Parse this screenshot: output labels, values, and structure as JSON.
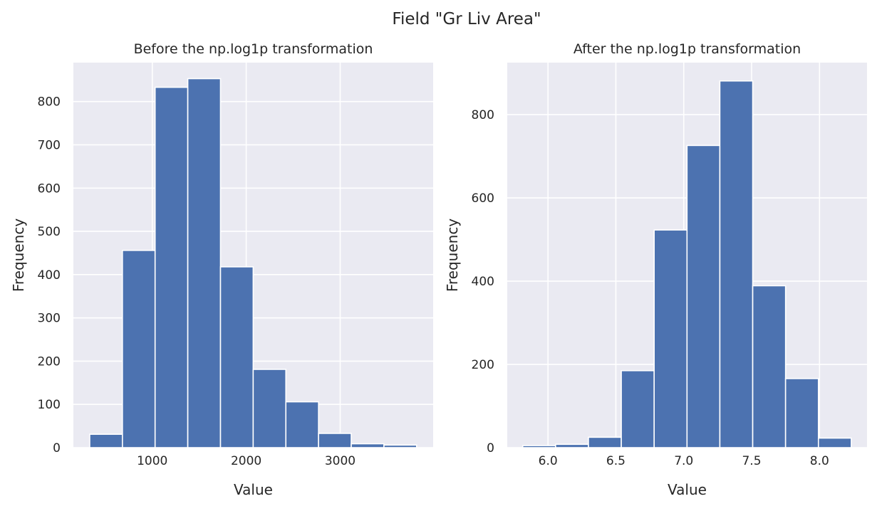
{
  "suptitle": "Field \"Gr Liv Area\"",
  "colors": {
    "bar": "#4c72b0",
    "background": "#eaeaf2",
    "grid": "#ffffff",
    "text": "#262626"
  },
  "chart_data": [
    {
      "type": "bar",
      "title": "Before the np.log1p transformation",
      "xlabel": "Value",
      "ylabel": "Frequency",
      "grid": true,
      "xlim": [
        160,
        3990
      ],
      "ylim": [
        0,
        890
      ],
      "xticks": [
        1000,
        2000,
        3000
      ],
      "yticks": [
        0,
        100,
        200,
        300,
        400,
        500,
        600,
        700,
        800
      ],
      "bin_edges": [
        334,
        682,
        1030,
        1378,
        1726,
        2074,
        2422,
        2770,
        3118,
        3466,
        3814
      ],
      "values": [
        31,
        456,
        833,
        853,
        418,
        181,
        106,
        33,
        9,
        6
      ]
    },
    {
      "type": "bar",
      "title": "After the np.log1p transformation",
      "xlabel": "Value",
      "ylabel": "Frequency",
      "grid": true,
      "xlim": [
        5.7,
        8.35
      ],
      "ylim": [
        0,
        925
      ],
      "xticks": [
        6.0,
        6.5,
        7.0,
        7.5,
        8.0
      ],
      "yticks": [
        0,
        200,
        400,
        600,
        800
      ],
      "bin_edges": [
        5.814,
        6.056,
        6.298,
        6.54,
        6.782,
        7.024,
        7.266,
        7.508,
        7.75,
        7.992,
        8.234
      ],
      "values": [
        5,
        8,
        25,
        185,
        523,
        726,
        881,
        389,
        166,
        23
      ]
    }
  ]
}
